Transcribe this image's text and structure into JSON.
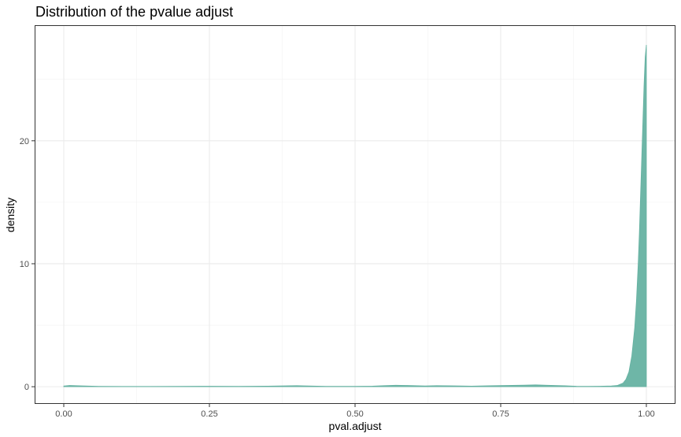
{
  "chart_data": {
    "type": "area",
    "title": "Distribution of the pvalue adjust",
    "xlabel": "pval.adjust",
    "ylabel": "density",
    "xlim": [
      -0.05,
      1.05
    ],
    "ylim": [
      -1.4,
      29.4
    ],
    "x_ticks": [
      0,
      0.25,
      0.5,
      0.75,
      1
    ],
    "x_tick_labels": [
      "0.00",
      "0.25",
      "0.50",
      "0.75",
      "1.00"
    ],
    "y_ticks": [
      0,
      10,
      20
    ],
    "y_tick_labels": [
      "0",
      "10",
      "20"
    ],
    "grid": true,
    "legend": "none",
    "fill_color": "#66b2a2",
    "series": [
      {
        "x": [
          0.0,
          0.01,
          0.03,
          0.06,
          0.1,
          0.15,
          0.2,
          0.25,
          0.3,
          0.35,
          0.38,
          0.4,
          0.42,
          0.45,
          0.5,
          0.53,
          0.55,
          0.57,
          0.59,
          0.62,
          0.64,
          0.67,
          0.7,
          0.73,
          0.76,
          0.79,
          0.81,
          0.83,
          0.86,
          0.88,
          0.9,
          0.92,
          0.94,
          0.95,
          0.96,
          0.965,
          0.97,
          0.975,
          0.98,
          0.983,
          0.986,
          0.988,
          0.99,
          0.992,
          0.994,
          0.996,
          0.998,
          1.0
        ],
        "y": [
          0.06,
          0.1,
          0.07,
          0.03,
          0.02,
          0.02,
          0.03,
          0.04,
          0.03,
          0.05,
          0.07,
          0.09,
          0.06,
          0.03,
          0.03,
          0.05,
          0.09,
          0.12,
          0.1,
          0.06,
          0.09,
          0.07,
          0.05,
          0.08,
          0.1,
          0.13,
          0.15,
          0.12,
          0.08,
          0.04,
          0.03,
          0.04,
          0.06,
          0.1,
          0.3,
          0.6,
          1.2,
          2.5,
          4.8,
          7.0,
          10.0,
          12.5,
          15.5,
          18.5,
          21.5,
          24.5,
          26.8,
          27.8
        ]
      }
    ]
  }
}
